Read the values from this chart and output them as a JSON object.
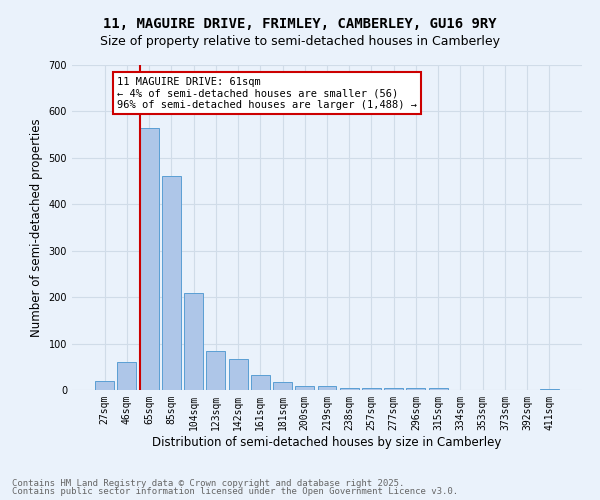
{
  "title1": "11, MAGUIRE DRIVE, FRIMLEY, CAMBERLEY, GU16 9RY",
  "title2": "Size of property relative to semi-detached houses in Camberley",
  "xlabel": "Distribution of semi-detached houses by size in Camberley",
  "ylabel": "Number of semi-detached properties",
  "bin_labels": [
    "27sqm",
    "46sqm",
    "65sqm",
    "85sqm",
    "104sqm",
    "123sqm",
    "142sqm",
    "161sqm",
    "181sqm",
    "200sqm",
    "219sqm",
    "238sqm",
    "257sqm",
    "277sqm",
    "296sqm",
    "315sqm",
    "334sqm",
    "353sqm",
    "373sqm",
    "392sqm",
    "411sqm"
  ],
  "bar_values": [
    20,
    60,
    565,
    460,
    210,
    83,
    67,
    32,
    17,
    9,
    8,
    5,
    4,
    4,
    4,
    5,
    1,
    1,
    1,
    1,
    3
  ],
  "bar_color": "#aec6e8",
  "bar_edge_color": "#5a9fd4",
  "grid_color": "#d0dce8",
  "background_color": "#eaf2fb",
  "vline_color": "#cc0000",
  "annotation_text": "11 MAGUIRE DRIVE: 61sqm\n← 4% of semi-detached houses are smaller (56)\n96% of semi-detached houses are larger (1,488) →",
  "annotation_box_color": "#ffffff",
  "annotation_border_color": "#cc0000",
  "ylim": [
    0,
    700
  ],
  "yticks": [
    0,
    100,
    200,
    300,
    400,
    500,
    600,
    700
  ],
  "footer1": "Contains HM Land Registry data © Crown copyright and database right 2025.",
  "footer2": "Contains public sector information licensed under the Open Government Licence v3.0.",
  "title1_fontsize": 10,
  "title2_fontsize": 9,
  "axis_label_fontsize": 8.5,
  "tick_fontsize": 7,
  "annotation_fontsize": 7.5,
  "footer_fontsize": 6.5
}
